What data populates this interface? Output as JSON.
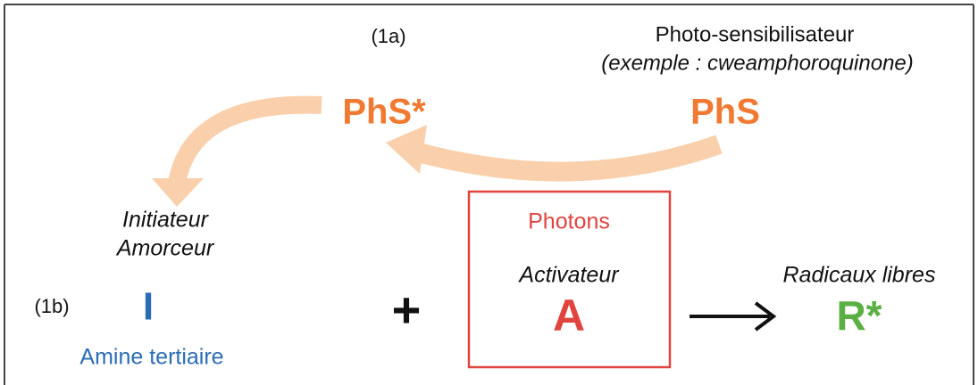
{
  "step_1a": {
    "label": "(1a)",
    "photosensitizer": {
      "title": "Photo-sensibilisateur",
      "example": "(exemple : cweamphoroquinone)",
      "ground_state": "PhS",
      "excited_state": "PhS*"
    }
  },
  "step_1b": {
    "label": "(1b)",
    "initiator": {
      "line1": "Initiateur",
      "line2": "Amorceur",
      "symbol": "I",
      "caption": "Amine tertiaire"
    },
    "plus": "+",
    "activator": {
      "source": "Photons",
      "name": "Activateur",
      "symbol": "A"
    },
    "product": {
      "name": "Radicaux libres",
      "symbol": "R*"
    }
  }
}
